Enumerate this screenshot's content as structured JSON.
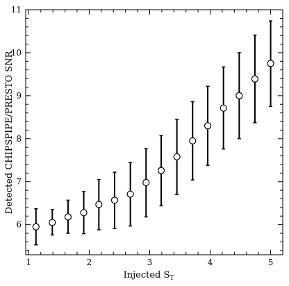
{
  "chart_data": {
    "type": "scatter",
    "xlabel": "Injected S",
    "xlabel_subscript": "T",
    "ylabel": "Detected CHIPSPIPE/PRESTO SNR",
    "xlim": [
      0.95,
      5.2
    ],
    "ylim": [
      5.3,
      11
    ],
    "x_ticks": [
      1,
      2,
      3,
      4,
      5
    ],
    "y_ticks": [
      6,
      7,
      8,
      9,
      10,
      11
    ],
    "grid": false,
    "marker": "open-circle",
    "points": [
      {
        "x": 1.12,
        "y": 5.95,
        "lo": 5.53,
        "hi": 6.37
      },
      {
        "x": 1.39,
        "y": 6.05,
        "lo": 5.76,
        "hi": 6.35
      },
      {
        "x": 1.65,
        "y": 6.18,
        "lo": 5.8,
        "hi": 6.57
      },
      {
        "x": 1.91,
        "y": 6.28,
        "lo": 5.79,
        "hi": 6.77
      },
      {
        "x": 2.16,
        "y": 6.47,
        "lo": 5.88,
        "hi": 7.05
      },
      {
        "x": 2.42,
        "y": 6.57,
        "lo": 5.91,
        "hi": 7.22
      },
      {
        "x": 2.68,
        "y": 6.71,
        "lo": 5.97,
        "hi": 7.45
      },
      {
        "x": 2.94,
        "y": 6.98,
        "lo": 6.18,
        "hi": 7.77
      },
      {
        "x": 3.19,
        "y": 7.26,
        "lo": 6.44,
        "hi": 8.07
      },
      {
        "x": 3.45,
        "y": 7.58,
        "lo": 6.7,
        "hi": 8.45
      },
      {
        "x": 3.71,
        "y": 7.95,
        "lo": 7.04,
        "hi": 8.86
      },
      {
        "x": 3.96,
        "y": 8.3,
        "lo": 7.38,
        "hi": 9.22
      },
      {
        "x": 4.22,
        "y": 8.71,
        "lo": 7.76,
        "hi": 9.67
      },
      {
        "x": 4.48,
        "y": 9.0,
        "lo": 8.0,
        "hi": 10.0
      },
      {
        "x": 4.74,
        "y": 9.39,
        "lo": 8.37,
        "hi": 10.41
      },
      {
        "x": 5.0,
        "y": 9.75,
        "lo": 8.75,
        "hi": 10.74
      }
    ]
  }
}
